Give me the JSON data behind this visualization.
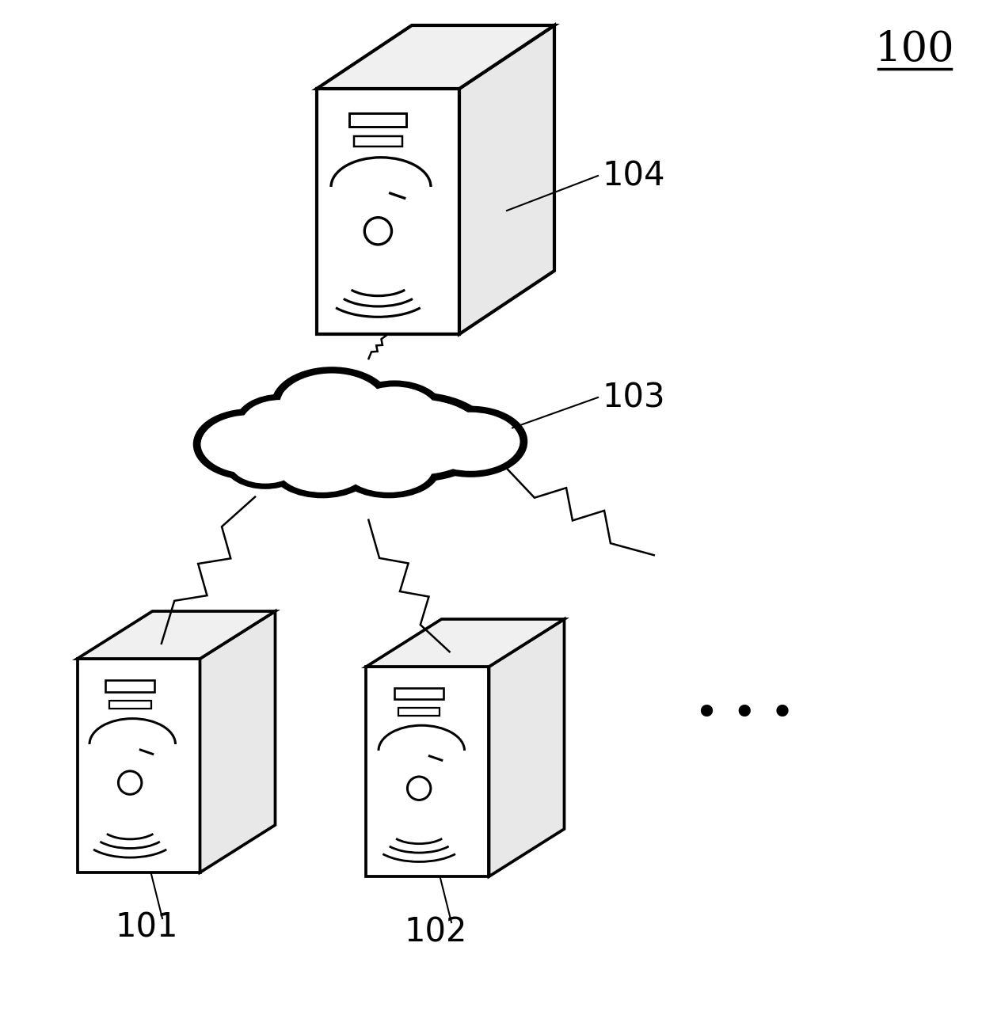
{
  "bg_color": "#ffffff",
  "line_color": "#000000",
  "label_100": "100",
  "label_104": "104",
  "label_103": "103",
  "label_101": "101",
  "label_102": "102",
  "figsize": [
    12.4,
    12.82
  ],
  "dpi": 100,
  "server_face_color": "#ffffff",
  "server_edge_color": "#000000",
  "server_top_color": "#f0f0f0",
  "server_side_color": "#e8e8e8",
  "lw_server": 3.0,
  "lw_cloud": 7.0,
  "lw_bolt": 1.8,
  "lw_label_line": 1.5,
  "fs_label": 30,
  "fs_100": 38
}
